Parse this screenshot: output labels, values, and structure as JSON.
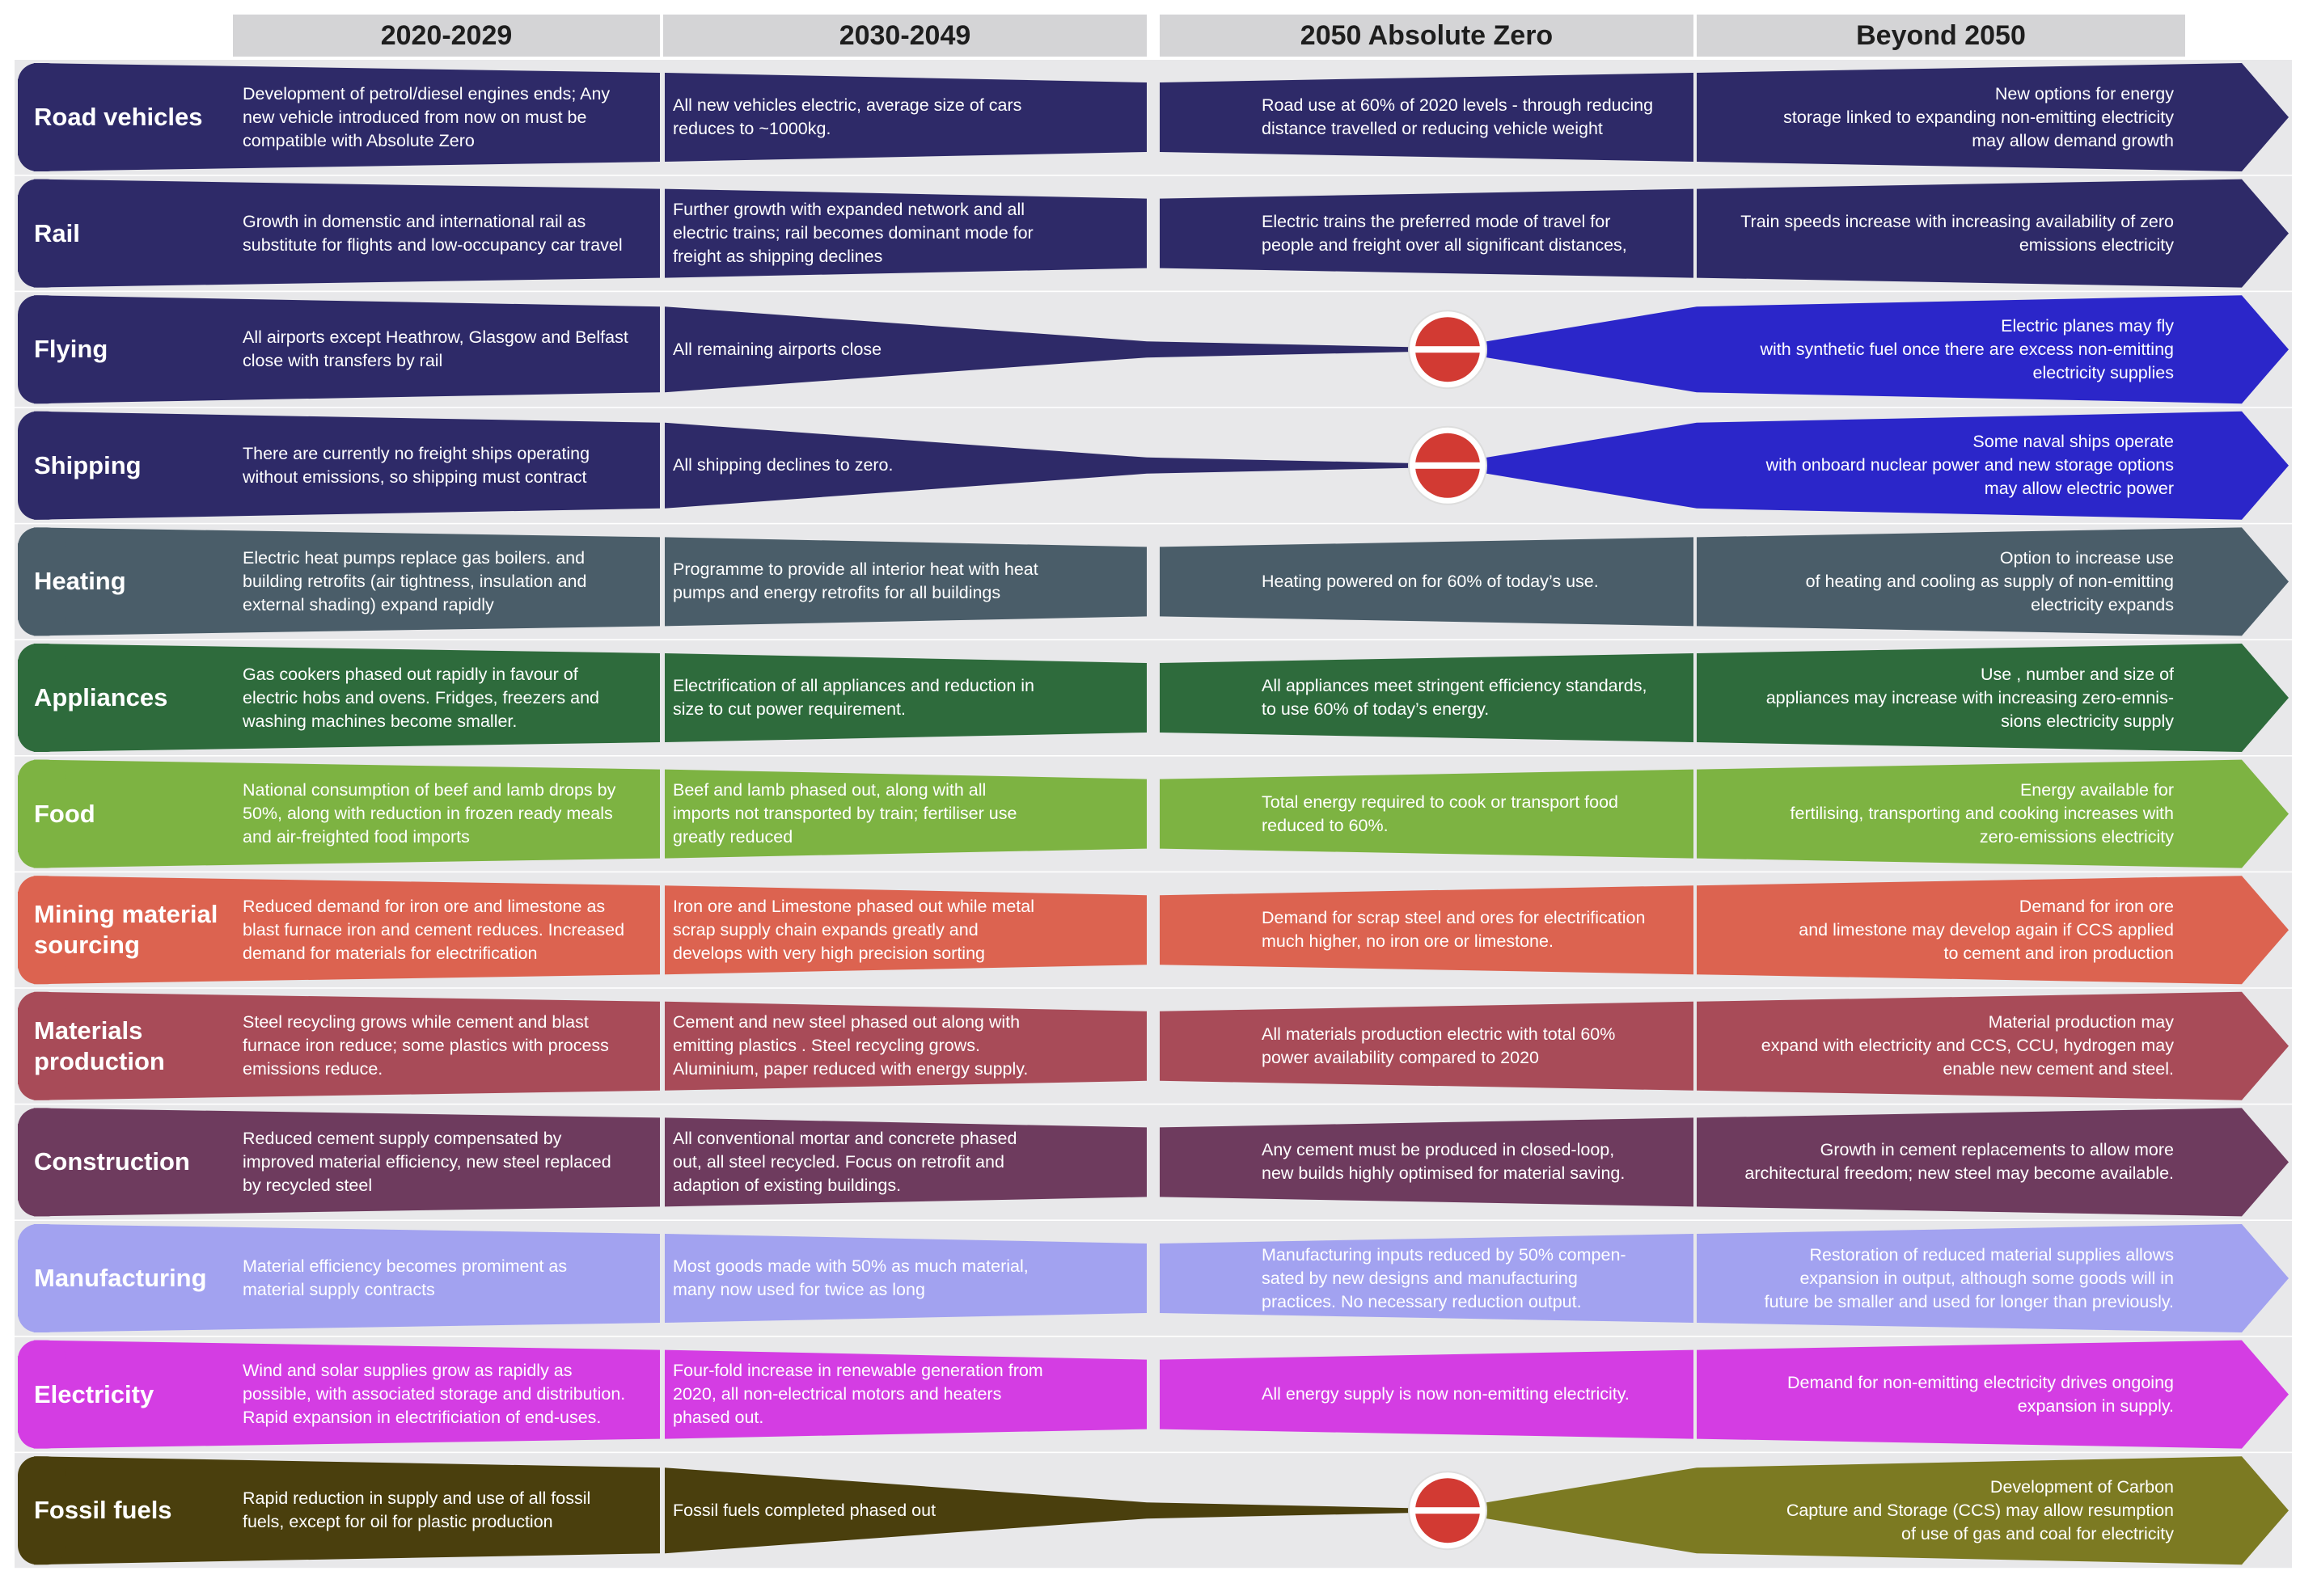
{
  "columns": [
    "2020-2029",
    "2030-2049",
    "2050 Absolute Zero",
    "Beyond 2050"
  ],
  "rows": [
    {
      "label": "Road vehicles",
      "color": "#2e2a68",
      "shape": "continue",
      "c1": "Development of petrol/diesel engines ends; Any\nnew vehicle introduced from now on must be\ncompatible with Absolute Zero",
      "c2": "All new vehicles electric, average size of cars\nreduces to ~1000kg.",
      "c3": "Road use at 60% of 2020 levels - through reducing\ndistance travelled or reducing vehicle weight",
      "c4": "New options for energy\nstorage linked to expanding non-emitting electricity\nmay allow demand growth"
    },
    {
      "label": "Rail",
      "color": "#2e2a68",
      "shape": "continue",
      "c1": "Growth in domenstic and international rail as\nsubstitute for flights and low-occupancy car travel",
      "c2": "Further growth with expanded network and all\nelectric trains; rail becomes dominant mode for\nfreight as shipping declines",
      "c3": "Electric trains the preferred mode of travel for\npeople and freight over all significant distances,",
      "c4": "Train speeds increase with increasing availability of zero\nemissions electricity"
    },
    {
      "label": "Flying",
      "color": "#2e2a68",
      "color2": "#2b26c9",
      "shape": "stop",
      "c1": "All airports except Heathrow, Glasgow and Belfast\nclose with transfers by rail",
      "c2": "All remaining airports close",
      "c3": "",
      "c4": "Electric planes may fly\nwith synthetic fuel once  there are excess non-emitting\nelectricity supplies"
    },
    {
      "label": "Shipping",
      "color": "#2e2a68",
      "color2": "#2b26c9",
      "shape": "stop",
      "c1": "There are currently no freight ships operating\nwithout emissions, so shipping must contract",
      "c2": "All shipping declines to zero.",
      "c3": "",
      "c4": "Some naval ships operate\nwith onboard nuclear power and new storage options\nmay allow electric power"
    },
    {
      "label": "Heating",
      "color": "#4a5d69",
      "shape": "continue",
      "c1": "Electric heat pumps replace gas boilers. and\nbuilding retrofits (air tightness, insulation and\nexternal shading) expand rapidly",
      "c2": "Programme to provide all interior heat with heat\npumps and energy retrofits for all buildings",
      "c3": "Heating powered on for 60% of today’s use.",
      "c4": "Option to increase use\nof heating and cooling as supply of non-emitting\nelectricity expands"
    },
    {
      "label": "Appliances",
      "color": "#2e6b3c",
      "shape": "continue",
      "c1": "Gas cookers phased out rapidly in favour of\nelectric hobs and ovens. Fridges, freezers and\nwashing machines become smaller.",
      "c2": "Electrification of all appliances and reduction in\nsize to cut power requirement.",
      "c3": "All appliances meet stringent efficiency standards,\nto use 60% of today’s energy.",
      "c4": "Use , number and size of\nappliances  may increase with increasing zero-emnis-\nsions electricity supply"
    },
    {
      "label": "Food",
      "color": "#7db342",
      "shape": "continue",
      "c1": "National consumption of beef and lamb drops by\n50%, along with reduction in frozen ready meals\nand air-freighted food imports",
      "c2": "Beef and lamb phased out, along with all\nimports not transported by train; fertiliser use\ngreatly reduced",
      "c3": "Total energy required to cook or transport food\nreduced to 60%.",
      "c4": "Energy available for\nfertilising, transporting and cooking increases with\nzero-emissions electricity"
    },
    {
      "label": "Mining  material\nsourcing",
      "color": "#dc6350",
      "shape": "continue",
      "c1": "Reduced demand for iron ore and limestone as\nblast furnace iron and cement reduces. Increased\ndemand for materials for electrification",
      "c2": "Iron ore and Limestone phased out while metal\nscrap supply chain expands greatly and\ndevelops with very high precision sorting",
      "c3": "Demand for scrap steel and ores for electrification\nmuch higher, no iron ore or limestone.",
      "c4": "Demand for iron ore\nand limestone may develop again if CCS applied\nto cement and iron production"
    },
    {
      "label": "Materials\nproduction",
      "color": "#a84b58",
      "shape": "continue",
      "c1": "Steel recycling grows while cement and blast\nfurnace iron reduce; some plastics with process\nemissions reduce.",
      "c2": "Cement and new steel phased out along with\nemitting plastics . Steel recycling grows.\nAluminium, paper reduced with energy supply.",
      "c3": "All materials production electric with total 60%\npower availability compared to 2020",
      "c4": "Material production may\nexpand with electricity and CCS, CCU, hydrogen may\nenable new cement and steel."
    },
    {
      "label": "Construction",
      "color": "#6e3b5e",
      "shape": "continue",
      "c1": "Reduced cement supply compensated by\nimproved material efficiency, new steel replaced\nby recycled steel",
      "c2": "All conventional mortar and concrete phased\nout, all steel recycled. Focus on retrofit and\nadaption of existing buildings.",
      "c3": "Any cement must be produced in closed-loop,\nnew builds highly optimised for material saving.",
      "c4": "Growth in cement replacements to allow more\narchitectural freedom; new steel may become available."
    },
    {
      "label": "Manufacturing",
      "color": "#a2a2f0",
      "shape": "continue",
      "c1": "Material efficiency becomes promiment as\nmaterial supply contracts",
      "c2": "Most goods made with 50% as much material,\nmany now used for twice as long",
      "c3": "Manufacturing inputs reduced by 50% compen-\nsated by new designs and manufacturing\npractices. No necessary reduction output.",
      "c4": "Restoration of reduced material supplies allows\nexpansion in output, although some goods will in\nfuture be smaller and used for longer than previously."
    },
    {
      "label": "Electricity",
      "color": "#d43de3",
      "shape": "continue",
      "c1": "Wind and solar supplies grow as rapidly as\npossible, with associated storage and distribution.\nRapid expansion in electrificiation of end-uses.",
      "c2": "Four-fold increase in renewable generation from\n2020, all non-electrical motors and heaters\nphased out.",
      "c3": "All energy supply is now non-emitting electricity.",
      "c4": "Demand for non-emitting electricity drives ongoing\nexpansion in supply."
    },
    {
      "label": "Fossil fuels",
      "color": "#4a3f0d",
      "color2": "#7c7a22",
      "shape": "stop",
      "c1": "Rapid reduction in supply and use of all fossil\nfuels, except for oil for plastic production",
      "c2": "Fossil fuels completed phased out",
      "c3": "",
      "c4": "Development of Carbon\nCapture and Storage (CCS) may allow resumption\nof use of gas and coal for electricity"
    }
  ],
  "icons": {
    "stop": "no-entry-icon"
  },
  "colors": {
    "stop_red": "#d23a33",
    "band": "#e8e8ea",
    "header": "#d4d4d6"
  }
}
